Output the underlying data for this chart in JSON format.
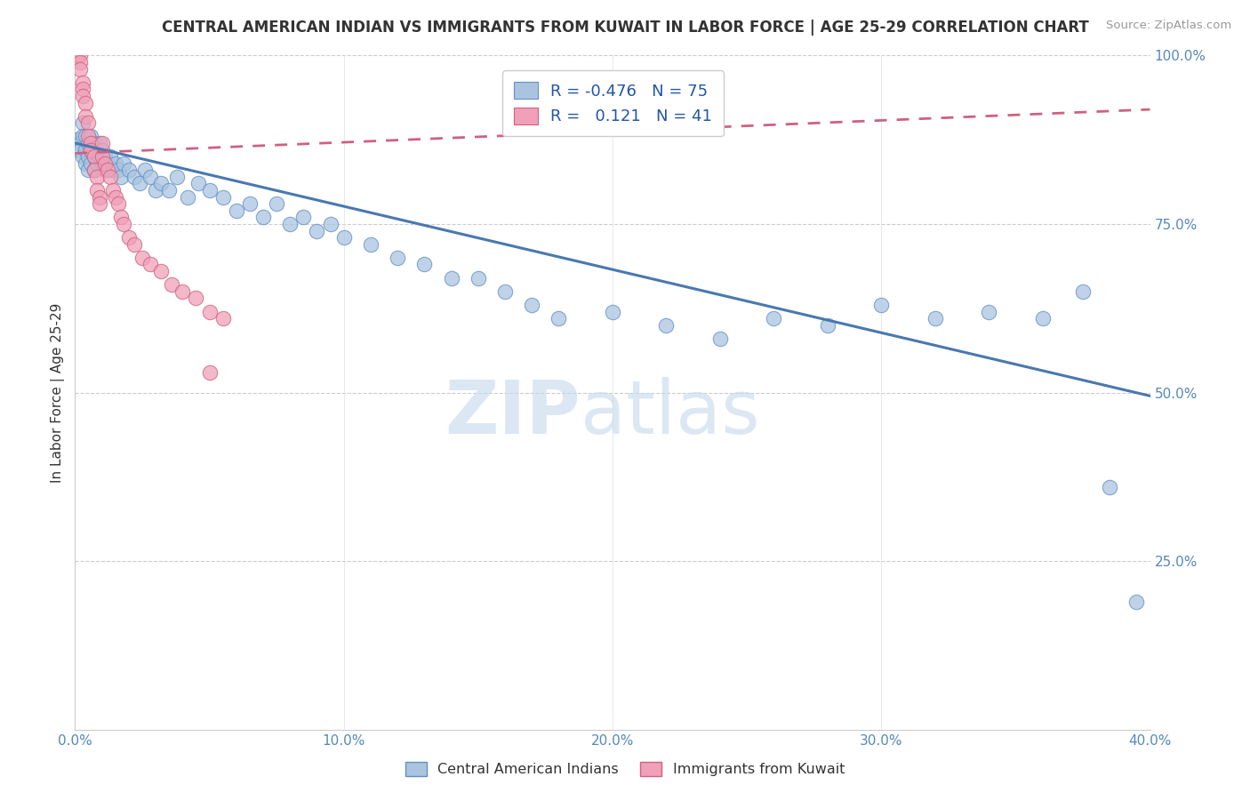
{
  "title": "CENTRAL AMERICAN INDIAN VS IMMIGRANTS FROM KUWAIT IN LABOR FORCE | AGE 25-29 CORRELATION CHART",
  "source": "Source: ZipAtlas.com",
  "ylabel": "In Labor Force | Age 25-29",
  "xlim": [
    0.0,
    0.4
  ],
  "ylim": [
    0.0,
    1.0
  ],
  "xtick_labels": [
    "0.0%",
    "",
    "",
    "",
    "10.0%",
    "",
    "",
    "",
    "20.0%",
    "",
    "",
    "",
    "30.0%",
    "",
    "",
    "",
    "40.0%"
  ],
  "xtick_vals": [
    0.0,
    0.025,
    0.05,
    0.075,
    0.1,
    0.125,
    0.15,
    0.175,
    0.2,
    0.225,
    0.25,
    0.275,
    0.3,
    0.325,
    0.35,
    0.375,
    0.4
  ],
  "ytick_labels": [
    "25.0%",
    "50.0%",
    "75.0%",
    "100.0%"
  ],
  "ytick_vals": [
    0.25,
    0.5,
    0.75,
    1.0
  ],
  "blue_color": "#aac4e0",
  "pink_color": "#f0a0b8",
  "blue_edge_color": "#6090c8",
  "pink_edge_color": "#d06080",
  "blue_line_color": "#4878b0",
  "pink_line_color": "#d05878",
  "legend_R_blue": "-0.476",
  "legend_N_blue": "75",
  "legend_R_pink": "0.121",
  "legend_N_pink": "41",
  "watermark_zip": "ZIP",
  "watermark_atlas": "atlas",
  "blue_scatter_x": [
    0.001,
    0.002,
    0.002,
    0.003,
    0.003,
    0.003,
    0.004,
    0.004,
    0.004,
    0.005,
    0.005,
    0.005,
    0.006,
    0.006,
    0.006,
    0.007,
    0.007,
    0.007,
    0.008,
    0.008,
    0.009,
    0.009,
    0.01,
    0.01,
    0.011,
    0.011,
    0.012,
    0.013,
    0.014,
    0.015,
    0.016,
    0.017,
    0.018,
    0.02,
    0.022,
    0.024,
    0.026,
    0.028,
    0.03,
    0.032,
    0.035,
    0.038,
    0.042,
    0.046,
    0.05,
    0.055,
    0.06,
    0.065,
    0.07,
    0.075,
    0.08,
    0.085,
    0.09,
    0.095,
    0.1,
    0.11,
    0.12,
    0.13,
    0.14,
    0.15,
    0.16,
    0.17,
    0.18,
    0.2,
    0.22,
    0.24,
    0.26,
    0.28,
    0.3,
    0.32,
    0.34,
    0.36,
    0.375,
    0.385,
    0.395
  ],
  "blue_scatter_y": [
    0.875,
    0.87,
    0.86,
    0.9,
    0.88,
    0.85,
    0.88,
    0.86,
    0.84,
    0.87,
    0.85,
    0.83,
    0.88,
    0.86,
    0.84,
    0.87,
    0.85,
    0.83,
    0.86,
    0.84,
    0.87,
    0.85,
    0.86,
    0.84,
    0.85,
    0.83,
    0.84,
    0.85,
    0.83,
    0.84,
    0.83,
    0.82,
    0.84,
    0.83,
    0.82,
    0.81,
    0.83,
    0.82,
    0.8,
    0.81,
    0.8,
    0.82,
    0.79,
    0.81,
    0.8,
    0.79,
    0.77,
    0.78,
    0.76,
    0.78,
    0.75,
    0.76,
    0.74,
    0.75,
    0.73,
    0.72,
    0.7,
    0.69,
    0.67,
    0.67,
    0.65,
    0.63,
    0.61,
    0.62,
    0.6,
    0.58,
    0.61,
    0.6,
    0.63,
    0.61,
    0.62,
    0.61,
    0.65,
    0.36,
    0.19
  ],
  "pink_scatter_x": [
    0.001,
    0.001,
    0.002,
    0.002,
    0.002,
    0.003,
    0.003,
    0.003,
    0.004,
    0.004,
    0.005,
    0.005,
    0.006,
    0.006,
    0.007,
    0.007,
    0.008,
    0.008,
    0.009,
    0.009,
    0.01,
    0.01,
    0.011,
    0.012,
    0.013,
    0.014,
    0.015,
    0.016,
    0.017,
    0.018,
    0.02,
    0.022,
    0.025,
    0.028,
    0.032,
    0.036,
    0.04,
    0.045,
    0.05,
    0.055,
    0.05
  ],
  "pink_scatter_y": [
    1.0,
    1.0,
    1.0,
    0.99,
    0.98,
    0.96,
    0.95,
    0.94,
    0.93,
    0.91,
    0.9,
    0.88,
    0.87,
    0.86,
    0.85,
    0.83,
    0.82,
    0.8,
    0.79,
    0.78,
    0.87,
    0.85,
    0.84,
    0.83,
    0.82,
    0.8,
    0.79,
    0.78,
    0.76,
    0.75,
    0.73,
    0.72,
    0.7,
    0.69,
    0.68,
    0.66,
    0.65,
    0.64,
    0.62,
    0.61,
    0.53
  ],
  "blue_line_x0": 0.0,
  "blue_line_y0": 0.87,
  "blue_line_x1": 0.4,
  "blue_line_y1": 0.495,
  "pink_line_x0": 0.0,
  "pink_line_y0": 0.855,
  "pink_line_x1": 0.4,
  "pink_line_y1": 0.92
}
